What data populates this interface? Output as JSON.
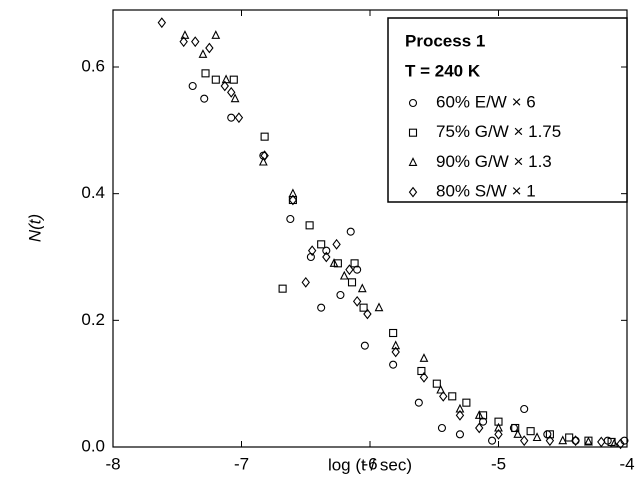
{
  "chart_data": {
    "type": "scatter",
    "xlabel": "log (t / sec)",
    "ylabel": "N(t)",
    "legend_title": [
      "Process 1",
      "T = 240 K"
    ],
    "legend_position": "upper right",
    "xlim": [
      -8,
      -4
    ],
    "xticks": [
      -8,
      -7,
      -6,
      -5,
      -4
    ],
    "ylim": [
      0,
      0.69
    ],
    "yticks": [
      {
        "value": 0,
        "label": "0.0"
      },
      0.2,
      0.4,
      0.6
    ],
    "series": [
      {
        "name": "60% E/W × 6",
        "color": "#000000",
        "marker": "circle",
        "x": [
          -7.38,
          -7.29,
          -7.08,
          -6.83,
          -6.62,
          -6.46,
          -6.38,
          -6.34,
          -6.23,
          -6.15,
          -6.1,
          -6.04,
          -5.82,
          -5.62,
          -5.44,
          -5.3,
          -5.12,
          -5.05,
          -4.88,
          -4.8,
          -4.62,
          -4.4,
          -4.15,
          -4.02
        ],
        "values": [
          0.57,
          0.55,
          0.52,
          0.46,
          0.36,
          0.3,
          0.22,
          0.31,
          0.24,
          0.34,
          0.28,
          0.16,
          0.13,
          0.07,
          0.03,
          0.02,
          0.04,
          0.01,
          0.03,
          0.06,
          0.02,
          0.01,
          0.01,
          0.01
        ]
      },
      {
        "name": "75% G/W × 1.75",
        "color": "#000000",
        "marker": "square",
        "x": [
          -7.28,
          -7.2,
          -7.06,
          -6.82,
          -6.68,
          -6.6,
          -6.47,
          -6.38,
          -6.25,
          -6.14,
          -6.12,
          -6.05,
          -5.82,
          -5.6,
          -5.48,
          -5.36,
          -5.25,
          -5.12,
          -5.0,
          -4.87,
          -4.75,
          -4.6,
          -4.45,
          -4.3,
          -4.12
        ],
        "values": [
          0.59,
          0.58,
          0.58,
          0.49,
          0.25,
          0.39,
          0.35,
          0.32,
          0.29,
          0.26,
          0.29,
          0.22,
          0.18,
          0.12,
          0.1,
          0.08,
          0.07,
          0.05,
          0.04,
          0.03,
          0.025,
          0.02,
          0.015,
          0.01,
          0.008
        ]
      },
      {
        "name": "90% G/W × 1.3",
        "color": "#000000",
        "marker": "triangle",
        "x": [
          -7.44,
          -7.3,
          -7.2,
          -7.12,
          -7.05,
          -6.83,
          -6.6,
          -6.28,
          -6.2,
          -6.06,
          -5.93,
          -5.8,
          -5.58,
          -5.45,
          -5.3,
          -5.15,
          -5.0,
          -4.85,
          -4.7,
          -4.5,
          -4.3,
          -4.1
        ],
        "values": [
          0.65,
          0.62,
          0.65,
          0.58,
          0.55,
          0.45,
          0.4,
          0.29,
          0.27,
          0.25,
          0.22,
          0.16,
          0.14,
          0.09,
          0.06,
          0.05,
          0.03,
          0.02,
          0.015,
          0.01,
          0.008,
          0.005
        ]
      },
      {
        "name": "80% S/W × 1",
        "color": "#000000",
        "marker": "diamond",
        "x": [
          -7.62,
          -7.45,
          -7.36,
          -7.25,
          -7.13,
          -7.08,
          -7.02,
          -6.82,
          -6.6,
          -6.5,
          -6.45,
          -6.34,
          -6.26,
          -6.16,
          -6.1,
          -6.02,
          -5.8,
          -5.58,
          -5.43,
          -5.3,
          -5.15,
          -5.0,
          -4.8,
          -4.6,
          -4.4,
          -4.2,
          -4.05
        ],
        "values": [
          0.67,
          0.64,
          0.64,
          0.63,
          0.57,
          0.56,
          0.52,
          0.46,
          0.39,
          0.26,
          0.31,
          0.3,
          0.32,
          0.28,
          0.23,
          0.21,
          0.15,
          0.11,
          0.08,
          0.05,
          0.03,
          0.02,
          0.01,
          0.01,
          0.01,
          0.008,
          0.005
        ]
      }
    ]
  }
}
